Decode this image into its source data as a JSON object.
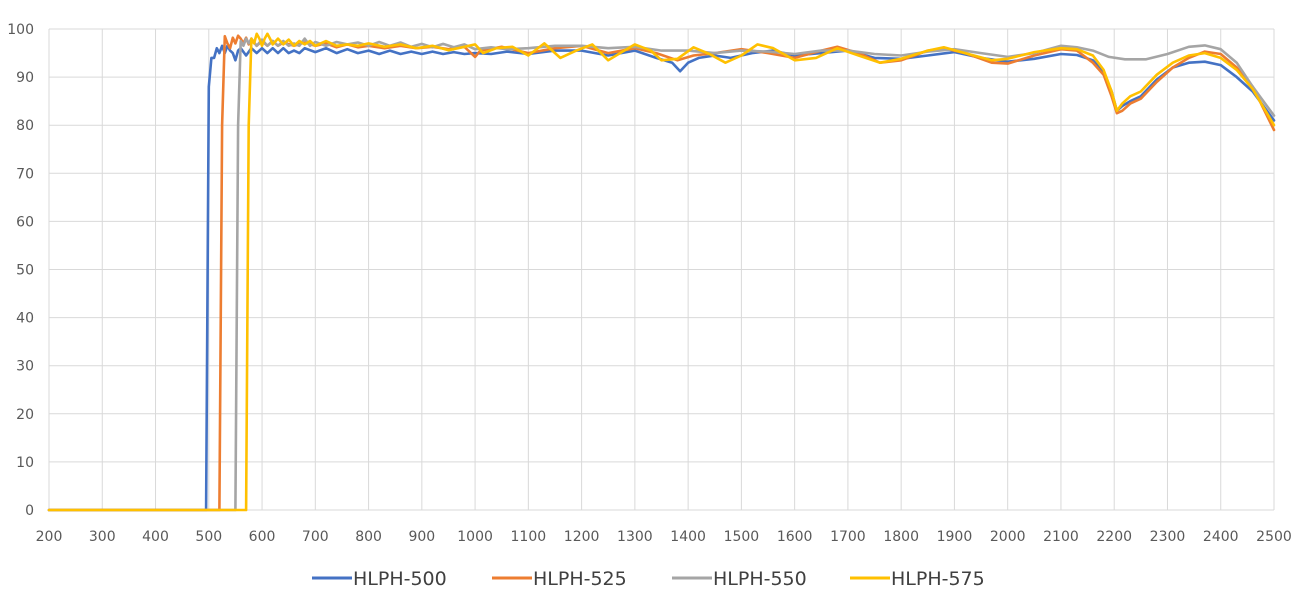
{
  "chart_data": {
    "type": "line",
    "title": "",
    "xlabel": "",
    "ylabel": "",
    "xlim": [
      200,
      2500
    ],
    "ylim": [
      0,
      100
    ],
    "x_ticks": [
      200,
      300,
      400,
      500,
      600,
      700,
      800,
      900,
      1000,
      1100,
      1200,
      1300,
      1400,
      1500,
      1600,
      1700,
      1800,
      1900,
      2000,
      2100,
      2200,
      2300,
      2400,
      2500
    ],
    "y_ticks": [
      0,
      10,
      20,
      30,
      40,
      50,
      60,
      70,
      80,
      90,
      100
    ],
    "grid": true,
    "legend_position": "bottom",
    "series": [
      {
        "name": "HLPH-500",
        "color": "#4472C4",
        "points": [
          [
            200,
            0
          ],
          [
            495,
            0
          ],
          [
            500,
            88
          ],
          [
            505,
            94
          ],
          [
            510,
            94
          ],
          [
            515,
            96
          ],
          [
            520,
            95
          ],
          [
            525,
            96.5
          ],
          [
            530,
            95
          ],
          [
            535,
            96.5
          ],
          [
            540,
            95.5
          ],
          [
            545,
            95
          ],
          [
            550,
            93.5
          ],
          [
            555,
            95.5
          ],
          [
            560,
            96
          ],
          [
            570,
            94.5
          ],
          [
            580,
            96
          ],
          [
            590,
            95
          ],
          [
            600,
            96
          ],
          [
            610,
            95
          ],
          [
            620,
            96
          ],
          [
            630,
            95
          ],
          [
            640,
            96
          ],
          [
            650,
            95
          ],
          [
            660,
            95.5
          ],
          [
            670,
            95
          ],
          [
            680,
            96
          ],
          [
            700,
            95.2
          ],
          [
            720,
            96
          ],
          [
            740,
            95
          ],
          [
            760,
            95.8
          ],
          [
            780,
            95
          ],
          [
            800,
            95.5
          ],
          [
            820,
            94.8
          ],
          [
            840,
            95.5
          ],
          [
            860,
            94.8
          ],
          [
            880,
            95.3
          ],
          [
            900,
            94.8
          ],
          [
            920,
            95.3
          ],
          [
            940,
            94.8
          ],
          [
            960,
            95.2
          ],
          [
            980,
            94.8
          ],
          [
            1000,
            95
          ],
          [
            1030,
            94.8
          ],
          [
            1060,
            95.3
          ],
          [
            1100,
            94.8
          ],
          [
            1150,
            95.5
          ],
          [
            1200,
            95.5
          ],
          [
            1250,
            94.5
          ],
          [
            1300,
            95.5
          ],
          [
            1340,
            94
          ],
          [
            1370,
            93
          ],
          [
            1385,
            91.2
          ],
          [
            1400,
            93
          ],
          [
            1420,
            94
          ],
          [
            1450,
            94.5
          ],
          [
            1480,
            94
          ],
          [
            1520,
            95
          ],
          [
            1560,
            95.5
          ],
          [
            1600,
            94.5
          ],
          [
            1650,
            95
          ],
          [
            1700,
            95.5
          ],
          [
            1750,
            94
          ],
          [
            1800,
            93.8
          ],
          [
            1850,
            94.5
          ],
          [
            1900,
            95.2
          ],
          [
            1950,
            94
          ],
          [
            2000,
            93.2
          ],
          [
            2050,
            93.8
          ],
          [
            2100,
            94.8
          ],
          [
            2130,
            94.6
          ],
          [
            2160,
            93.5
          ],
          [
            2180,
            91
          ],
          [
            2195,
            87
          ],
          [
            2205,
            83
          ],
          [
            2215,
            84
          ],
          [
            2230,
            85
          ],
          [
            2250,
            86
          ],
          [
            2280,
            89.5
          ],
          [
            2310,
            92
          ],
          [
            2340,
            93
          ],
          [
            2370,
            93.2
          ],
          [
            2400,
            92.5
          ],
          [
            2430,
            90
          ],
          [
            2460,
            87
          ],
          [
            2500,
            81
          ]
        ]
      },
      {
        "name": "HLPH-525",
        "color": "#ED7D31",
        "points": [
          [
            200,
            0
          ],
          [
            520,
            0
          ],
          [
            525,
            80
          ],
          [
            530,
            98.5
          ],
          [
            535,
            97
          ],
          [
            540,
            96
          ],
          [
            545,
            98.2
          ],
          [
            550,
            97
          ],
          [
            555,
            98.6
          ],
          [
            560,
            98
          ],
          [
            565,
            97
          ],
          [
            570,
            98.2
          ],
          [
            575,
            96.8
          ],
          [
            580,
            97.8
          ],
          [
            590,
            96.5
          ],
          [
            600,
            97.5
          ],
          [
            610,
            96.5
          ],
          [
            620,
            97.5
          ],
          [
            630,
            96.5
          ],
          [
            640,
            97.2
          ],
          [
            660,
            96.5
          ],
          [
            680,
            97.2
          ],
          [
            700,
            96.5
          ],
          [
            720,
            97
          ],
          [
            740,
            96.2
          ],
          [
            760,
            96.8
          ],
          [
            780,
            96.2
          ],
          [
            800,
            96.5
          ],
          [
            830,
            96
          ],
          [
            860,
            96.5
          ],
          [
            890,
            96
          ],
          [
            920,
            96.3
          ],
          [
            950,
            95.8
          ],
          [
            980,
            96.3
          ],
          [
            1000,
            94.2
          ],
          [
            1010,
            95.5
          ],
          [
            1050,
            96.3
          ],
          [
            1080,
            95.5
          ],
          [
            1100,
            95
          ],
          [
            1150,
            96
          ],
          [
            1200,
            96.5
          ],
          [
            1250,
            95
          ],
          [
            1300,
            96
          ],
          [
            1340,
            95
          ],
          [
            1380,
            93.5
          ],
          [
            1410,
            94.5
          ],
          [
            1450,
            95
          ],
          [
            1500,
            95.8
          ],
          [
            1550,
            95
          ],
          [
            1600,
            94
          ],
          [
            1650,
            95.5
          ],
          [
            1680,
            96.3
          ],
          [
            1720,
            95
          ],
          [
            1760,
            93
          ],
          [
            1800,
            93.5
          ],
          [
            1850,
            95.5
          ],
          [
            1880,
            96
          ],
          [
            1920,
            95
          ],
          [
            1970,
            93
          ],
          [
            2000,
            92.8
          ],
          [
            2050,
            94.5
          ],
          [
            2100,
            95.8
          ],
          [
            2130,
            95.5
          ],
          [
            2160,
            93
          ],
          [
            2180,
            90.5
          ],
          [
            2195,
            86
          ],
          [
            2205,
            82.5
          ],
          [
            2215,
            83
          ],
          [
            2230,
            84.5
          ],
          [
            2250,
            85.5
          ],
          [
            2280,
            89
          ],
          [
            2310,
            92
          ],
          [
            2340,
            94
          ],
          [
            2370,
            95.3
          ],
          [
            2400,
            94.8
          ],
          [
            2430,
            92
          ],
          [
            2460,
            88
          ],
          [
            2500,
            79
          ]
        ]
      },
      {
        "name": "HLPH-550",
        "color": "#A5A5A5",
        "points": [
          [
            200,
            0
          ],
          [
            550,
            0
          ],
          [
            555,
            80
          ],
          [
            560,
            97.5
          ],
          [
            565,
            96.5
          ],
          [
            570,
            98
          ],
          [
            575,
            97
          ],
          [
            580,
            98
          ],
          [
            590,
            96.5
          ],
          [
            600,
            97.8
          ],
          [
            610,
            96.5
          ],
          [
            620,
            97.5
          ],
          [
            630,
            96.5
          ],
          [
            640,
            97.5
          ],
          [
            650,
            96.5
          ],
          [
            660,
            97
          ],
          [
            670,
            96.5
          ],
          [
            680,
            98
          ],
          [
            690,
            96.5
          ],
          [
            700,
            97.3
          ],
          [
            720,
            96.5
          ],
          [
            740,
            97.3
          ],
          [
            760,
            96.8
          ],
          [
            780,
            97.2
          ],
          [
            800,
            96.5
          ],
          [
            820,
            97.3
          ],
          [
            840,
            96.5
          ],
          [
            860,
            97.2
          ],
          [
            880,
            96.3
          ],
          [
            900,
            96.9
          ],
          [
            920,
            96.2
          ],
          [
            940,
            96.9
          ],
          [
            960,
            96.2
          ],
          [
            980,
            96.8
          ],
          [
            1000,
            95.8
          ],
          [
            1030,
            96.2
          ],
          [
            1060,
            95.8
          ],
          [
            1100,
            96
          ],
          [
            1150,
            96.5
          ],
          [
            1200,
            96.5
          ],
          [
            1250,
            96
          ],
          [
            1300,
            96.3
          ],
          [
            1350,
            95.5
          ],
          [
            1400,
            95.5
          ],
          [
            1450,
            95
          ],
          [
            1500,
            95.5
          ],
          [
            1550,
            95.3
          ],
          [
            1600,
            94.8
          ],
          [
            1650,
            95.5
          ],
          [
            1700,
            95.5
          ],
          [
            1750,
            94.8
          ],
          [
            1800,
            94.5
          ],
          [
            1850,
            95.3
          ],
          [
            1900,
            95.8
          ],
          [
            1950,
            95
          ],
          [
            2000,
            94.2
          ],
          [
            2050,
            95
          ],
          [
            2100,
            96.5
          ],
          [
            2130,
            96.2
          ],
          [
            2160,
            95.5
          ],
          [
            2190,
            94.2
          ],
          [
            2220,
            93.7
          ],
          [
            2260,
            93.7
          ],
          [
            2300,
            94.8
          ],
          [
            2340,
            96.3
          ],
          [
            2370,
            96.6
          ],
          [
            2400,
            95.8
          ],
          [
            2430,
            93
          ],
          [
            2460,
            88
          ],
          [
            2500,
            82
          ]
        ]
      },
      {
        "name": "HLPH-575",
        "color": "#FFC000",
        "points": [
          [
            200,
            0
          ],
          [
            570,
            0
          ],
          [
            575,
            80
          ],
          [
            580,
            98
          ],
          [
            585,
            97
          ],
          [
            590,
            99
          ],
          [
            595,
            98
          ],
          [
            600,
            96.5
          ],
          [
            605,
            98
          ],
          [
            610,
            99
          ],
          [
            615,
            98
          ],
          [
            620,
            96.8
          ],
          [
            630,
            98
          ],
          [
            640,
            96.8
          ],
          [
            650,
            97.8
          ],
          [
            660,
            96.5
          ],
          [
            670,
            97.5
          ],
          [
            680,
            96.8
          ],
          [
            690,
            97.5
          ],
          [
            700,
            96.5
          ],
          [
            720,
            97.5
          ],
          [
            740,
            96.5
          ],
          [
            760,
            96.8
          ],
          [
            780,
            96.5
          ],
          [
            800,
            97
          ],
          [
            830,
            96.3
          ],
          [
            860,
            96.8
          ],
          [
            890,
            96
          ],
          [
            920,
            96.5
          ],
          [
            950,
            95.6
          ],
          [
            980,
            96.3
          ],
          [
            1000,
            96.8
          ],
          [
            1015,
            95
          ],
          [
            1040,
            96
          ],
          [
            1070,
            96.3
          ],
          [
            1100,
            94.5
          ],
          [
            1130,
            97
          ],
          [
            1160,
            94
          ],
          [
            1190,
            95.5
          ],
          [
            1220,
            96.8
          ],
          [
            1250,
            93.5
          ],
          [
            1280,
            95.5
          ],
          [
            1300,
            96.8
          ],
          [
            1330,
            95.5
          ],
          [
            1350,
            93.5
          ],
          [
            1380,
            93.8
          ],
          [
            1410,
            96.2
          ],
          [
            1440,
            94.8
          ],
          [
            1470,
            93
          ],
          [
            1500,
            94.5
          ],
          [
            1530,
            96.8
          ],
          [
            1560,
            96
          ],
          [
            1600,
            93.5
          ],
          [
            1640,
            94
          ],
          [
            1680,
            96
          ],
          [
            1720,
            94.5
          ],
          [
            1760,
            93
          ],
          [
            1800,
            93.8
          ],
          [
            1850,
            95.5
          ],
          [
            1880,
            96.2
          ],
          [
            1920,
            95
          ],
          [
            1970,
            93.5
          ],
          [
            2000,
            93.8
          ],
          [
            2050,
            95.2
          ],
          [
            2100,
            96
          ],
          [
            2130,
            95.8
          ],
          [
            2160,
            94.5
          ],
          [
            2180,
            91.5
          ],
          [
            2195,
            87
          ],
          [
            2205,
            83
          ],
          [
            2215,
            84.5
          ],
          [
            2230,
            86
          ],
          [
            2250,
            87
          ],
          [
            2280,
            90.5
          ],
          [
            2310,
            93
          ],
          [
            2340,
            94.5
          ],
          [
            2370,
            95
          ],
          [
            2400,
            94
          ],
          [
            2430,
            91.5
          ],
          [
            2460,
            87.5
          ],
          [
            2500,
            80
          ]
        ]
      }
    ]
  }
}
